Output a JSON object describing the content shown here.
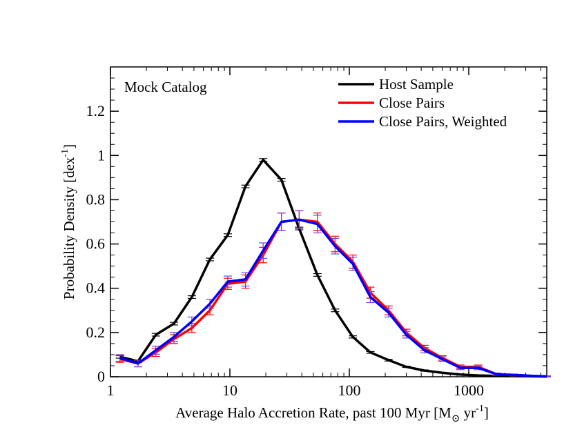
{
  "chart_data": {
    "type": "line",
    "annotation": "Mock Catalog",
    "xlabel": {
      "main": "Average Halo Accretion Rate, past 100 Myr [M",
      "sub": "⊙",
      "mid": " yr",
      "sup": "-1",
      "end": "]"
    },
    "ylabel": {
      "main": "Probability Density [dex",
      "sup": "-1",
      "end": "]"
    },
    "x_scale": "log",
    "xlim": [
      1,
      4500
    ],
    "ylim": [
      0,
      1.4
    ],
    "x_ticks": [
      1,
      10,
      100,
      1000
    ],
    "x_tick_labels": [
      "1",
      "10",
      "100",
      "1000"
    ],
    "y_ticks": [
      0,
      0.2,
      0.4,
      0.6,
      0.8,
      1,
      1.2
    ],
    "y_tick_labels": [
      "0",
      "0.2",
      "0.4",
      "0.6",
      "0.8",
      "1",
      "1.2"
    ],
    "legend_position": "top-right",
    "x": [
      1.2,
      1.7,
      2.4,
      3.4,
      4.8,
      6.8,
      9.6,
      13.5,
      19,
      27,
      38,
      54,
      76,
      107,
      150,
      213,
      300,
      425,
      600,
      850,
      1200,
      1700,
      2400,
      3400,
      4500
    ],
    "series": [
      {
        "name": "Host Sample",
        "color": "#000000",
        "values": [
          0.09,
          0.07,
          0.19,
          0.24,
          0.36,
          0.53,
          0.64,
          0.86,
          0.98,
          0.89,
          0.67,
          0.46,
          0.3,
          0.18,
          0.11,
          0.075,
          0.045,
          0.028,
          0.018,
          0.01,
          0.006,
          0.004,
          0.003,
          0.002,
          0.001
        ],
        "errors": [
          0.006,
          0.006,
          0.006,
          0.006,
          0.006,
          0.006,
          0.006,
          0.006,
          0.006,
          0.006,
          0.006,
          0.006,
          0.006,
          0.005,
          0.004,
          0.004,
          0.003,
          0.003,
          0.002,
          0.002,
          0.002,
          0.001,
          0.001,
          0.001,
          0.001
        ]
      },
      {
        "name": "Close Pairs",
        "color": "#ff0000",
        "values": [
          0.08,
          0.06,
          0.11,
          0.17,
          0.22,
          0.3,
          0.42,
          0.43,
          0.55,
          0.7,
          0.71,
          0.7,
          0.6,
          0.52,
          0.38,
          0.3,
          0.2,
          0.13,
          0.085,
          0.045,
          0.045,
          0.012,
          0.008,
          0.004,
          0.002
        ],
        "errors": [
          0.015,
          0.015,
          0.018,
          0.02,
          0.02,
          0.02,
          0.025,
          0.03,
          0.035,
          0.04,
          0.04,
          0.04,
          0.035,
          0.03,
          0.025,
          0.02,
          0.015,
          0.012,
          0.01,
          0.008,
          0.008,
          0.005,
          0.004,
          0.003,
          0.002
        ]
      },
      {
        "name": "Close Pairs, Weighted",
        "color": "#0000ff",
        "values": [
          0.085,
          0.06,
          0.12,
          0.18,
          0.25,
          0.33,
          0.43,
          0.44,
          0.57,
          0.7,
          0.71,
          0.69,
          0.59,
          0.51,
          0.36,
          0.29,
          0.19,
          0.12,
          0.08,
          0.04,
          0.04,
          0.012,
          0.008,
          0.004,
          0.002
        ],
        "errors": [
          0.015,
          0.015,
          0.018,
          0.02,
          0.02,
          0.02,
          0.025,
          0.03,
          0.035,
          0.04,
          0.04,
          0.04,
          0.035,
          0.03,
          0.025,
          0.02,
          0.015,
          0.012,
          0.01,
          0.008,
          0.008,
          0.005,
          0.004,
          0.003,
          0.002
        ]
      }
    ]
  }
}
